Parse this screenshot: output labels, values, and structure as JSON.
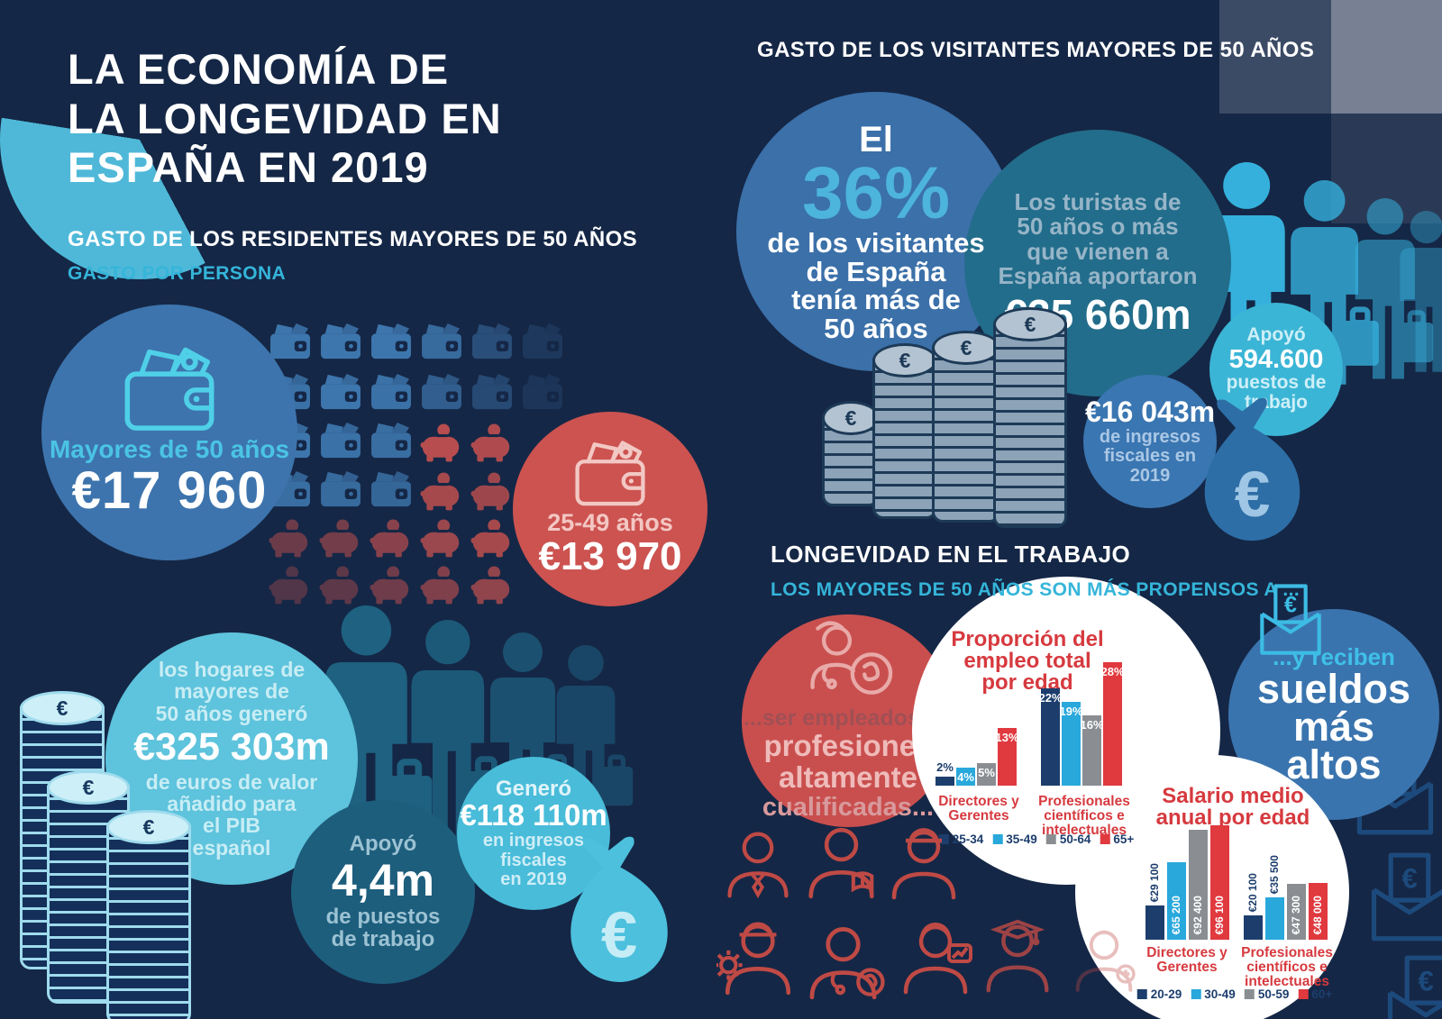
{
  "title": {
    "lines": [
      "LA ECONOMÍA DE",
      "LA LONGEVIDAD EN",
      "ESPAÑA EN 2019"
    ]
  },
  "residents": {
    "header": "GASTO DE LOS RESIDENTES MAYORES DE 50 AÑOS",
    "subheader": "GASTO POR PERSONA",
    "over50": {
      "label": "Mayores de 50 años",
      "value": "€17 960"
    },
    "age_25_49": {
      "label": "25-49 años",
      "value": "€13 970"
    },
    "gdp": {
      "intro_lines": [
        "los hogares de",
        "mayores de",
        "50 años generó"
      ],
      "value": "€325 303m",
      "outro_lines": [
        "de euros de valor",
        "añadido para",
        "el PIB",
        "español"
      ]
    },
    "jobs": {
      "intro": "Apoyó",
      "value": "4,4m",
      "outro_lines": [
        "de puestos",
        "de trabajo"
      ]
    },
    "taxes": {
      "intro": "Generó",
      "value": "€118 110m",
      "outro_lines": [
        "en ingresos",
        "fiscales",
        "en 2019"
      ]
    }
  },
  "visitors": {
    "header": "GASTO DE LOS VISITANTES MAYORES DE 50 AÑOS",
    "share": {
      "intro": "El",
      "value": "36%",
      "outro_lines": [
        "de los visitantes",
        "de España",
        "tenía más de",
        "50 años"
      ]
    },
    "contribution": {
      "intro_lines": [
        "Los turistas de",
        "50 años o más",
        "que vienen a",
        "España aportaron"
      ],
      "value": "€35 660m"
    },
    "jobs": {
      "intro": "Apoyó",
      "value": "594.600",
      "outro_lines": [
        "puestos de",
        "trabajo"
      ]
    },
    "taxes": {
      "value": "€16 043m",
      "outro_lines": [
        "de ingresos",
        "fiscales en",
        "2019"
      ]
    }
  },
  "work": {
    "header": "LONGEVIDAD EN EL TRABAJO",
    "subheader": "LOS MAYORES DE 50 AÑOS SON MÁS PROPENSOS A ...",
    "qualified_lines": [
      "...ser empleados en",
      "profesiones",
      "altamente",
      "cualificadas..."
    ],
    "salaries": {
      "intro": "...y reciben",
      "lines": [
        "sueldos",
        "más",
        "altos"
      ]
    }
  },
  "chart_data": [
    {
      "type": "bar",
      "title": "Proporción del empleo total por edad",
      "title_lines": [
        "Proporción del",
        "empleo total",
        "por edad"
      ],
      "categories": [
        {
          "label_lines": [
            "Directores y",
            "Gerentes"
          ]
        },
        {
          "label_lines": [
            "Profesionales",
            "científicos e",
            "intelectuales"
          ]
        }
      ],
      "age_groups": [
        "25-34",
        "35-49",
        "50-64",
        "65+"
      ],
      "series_colors": [
        "#1d3e6d",
        "#29a8dc",
        "#8a8e93",
        "#e0393e"
      ],
      "values": [
        [
          2,
          4,
          5,
          13
        ],
        [
          22,
          19,
          16,
          28
        ]
      ],
      "bar_labels": [
        [
          "2%",
          "4%",
          "5%",
          "13%"
        ],
        [
          "22%",
          "19%",
          "16%",
          "28%"
        ]
      ],
      "unit": "%",
      "legend_position": "bottom",
      "grid": false
    },
    {
      "type": "bar",
      "title": "Salario medio anual por edad",
      "title_lines": [
        "Salario medio",
        "anual por edad"
      ],
      "categories": [
        {
          "label_lines": [
            "Directores y",
            "Gerentes"
          ]
        },
        {
          "label_lines": [
            "Profesionales",
            "científicos e",
            "intelectuales"
          ]
        }
      ],
      "age_groups": [
        "20-29",
        "30-49",
        "50-59",
        "60+"
      ],
      "series_colors": [
        "#1d3e6d",
        "#29a8dc",
        "#8a8e93",
        "#e0393e"
      ],
      "values": [
        [
          29100,
          65200,
          92400,
          96100
        ],
        [
          20100,
          35500,
          47300,
          48000
        ]
      ],
      "bar_labels": [
        [
          "€29 100",
          "€65 200",
          "€92 400",
          "€96 100"
        ],
        [
          "€20 100",
          "€35 500",
          "€47 300",
          "€48 000"
        ]
      ],
      "unit": "EUR",
      "legend_position": "bottom",
      "grid": false
    }
  ],
  "colors": {
    "background": "#152746",
    "accent_cyan": "#35b5d9",
    "accent_blue": "#3d74ad",
    "accent_red": "#cc5350",
    "accent_light_cyan": "#5ec3dc",
    "accent_teal": "#1d5e7d",
    "chart_navy": "#1d3e6d",
    "chart_cyan": "#29a8dc",
    "chart_gray": "#8a8e93",
    "chart_red": "#e0393e"
  },
  "icons": {
    "wallet-icon": "wallet with banknotes",
    "piggy-bank-icon": "piggy bank with coin",
    "coin-stack-icon": "stack of euro coins",
    "money-bag-icon": "money bag with € sign",
    "traveler-icon": "person carrying suitcase",
    "envelope-euro-icon": "open envelope with € payslip",
    "doctor-icon": "doctor with organ badge",
    "profession-icons": [
      "businessman",
      "teacher",
      "construction-worker",
      "engineer",
      "doctor",
      "consultant",
      "graduate",
      "nurse"
    ]
  }
}
